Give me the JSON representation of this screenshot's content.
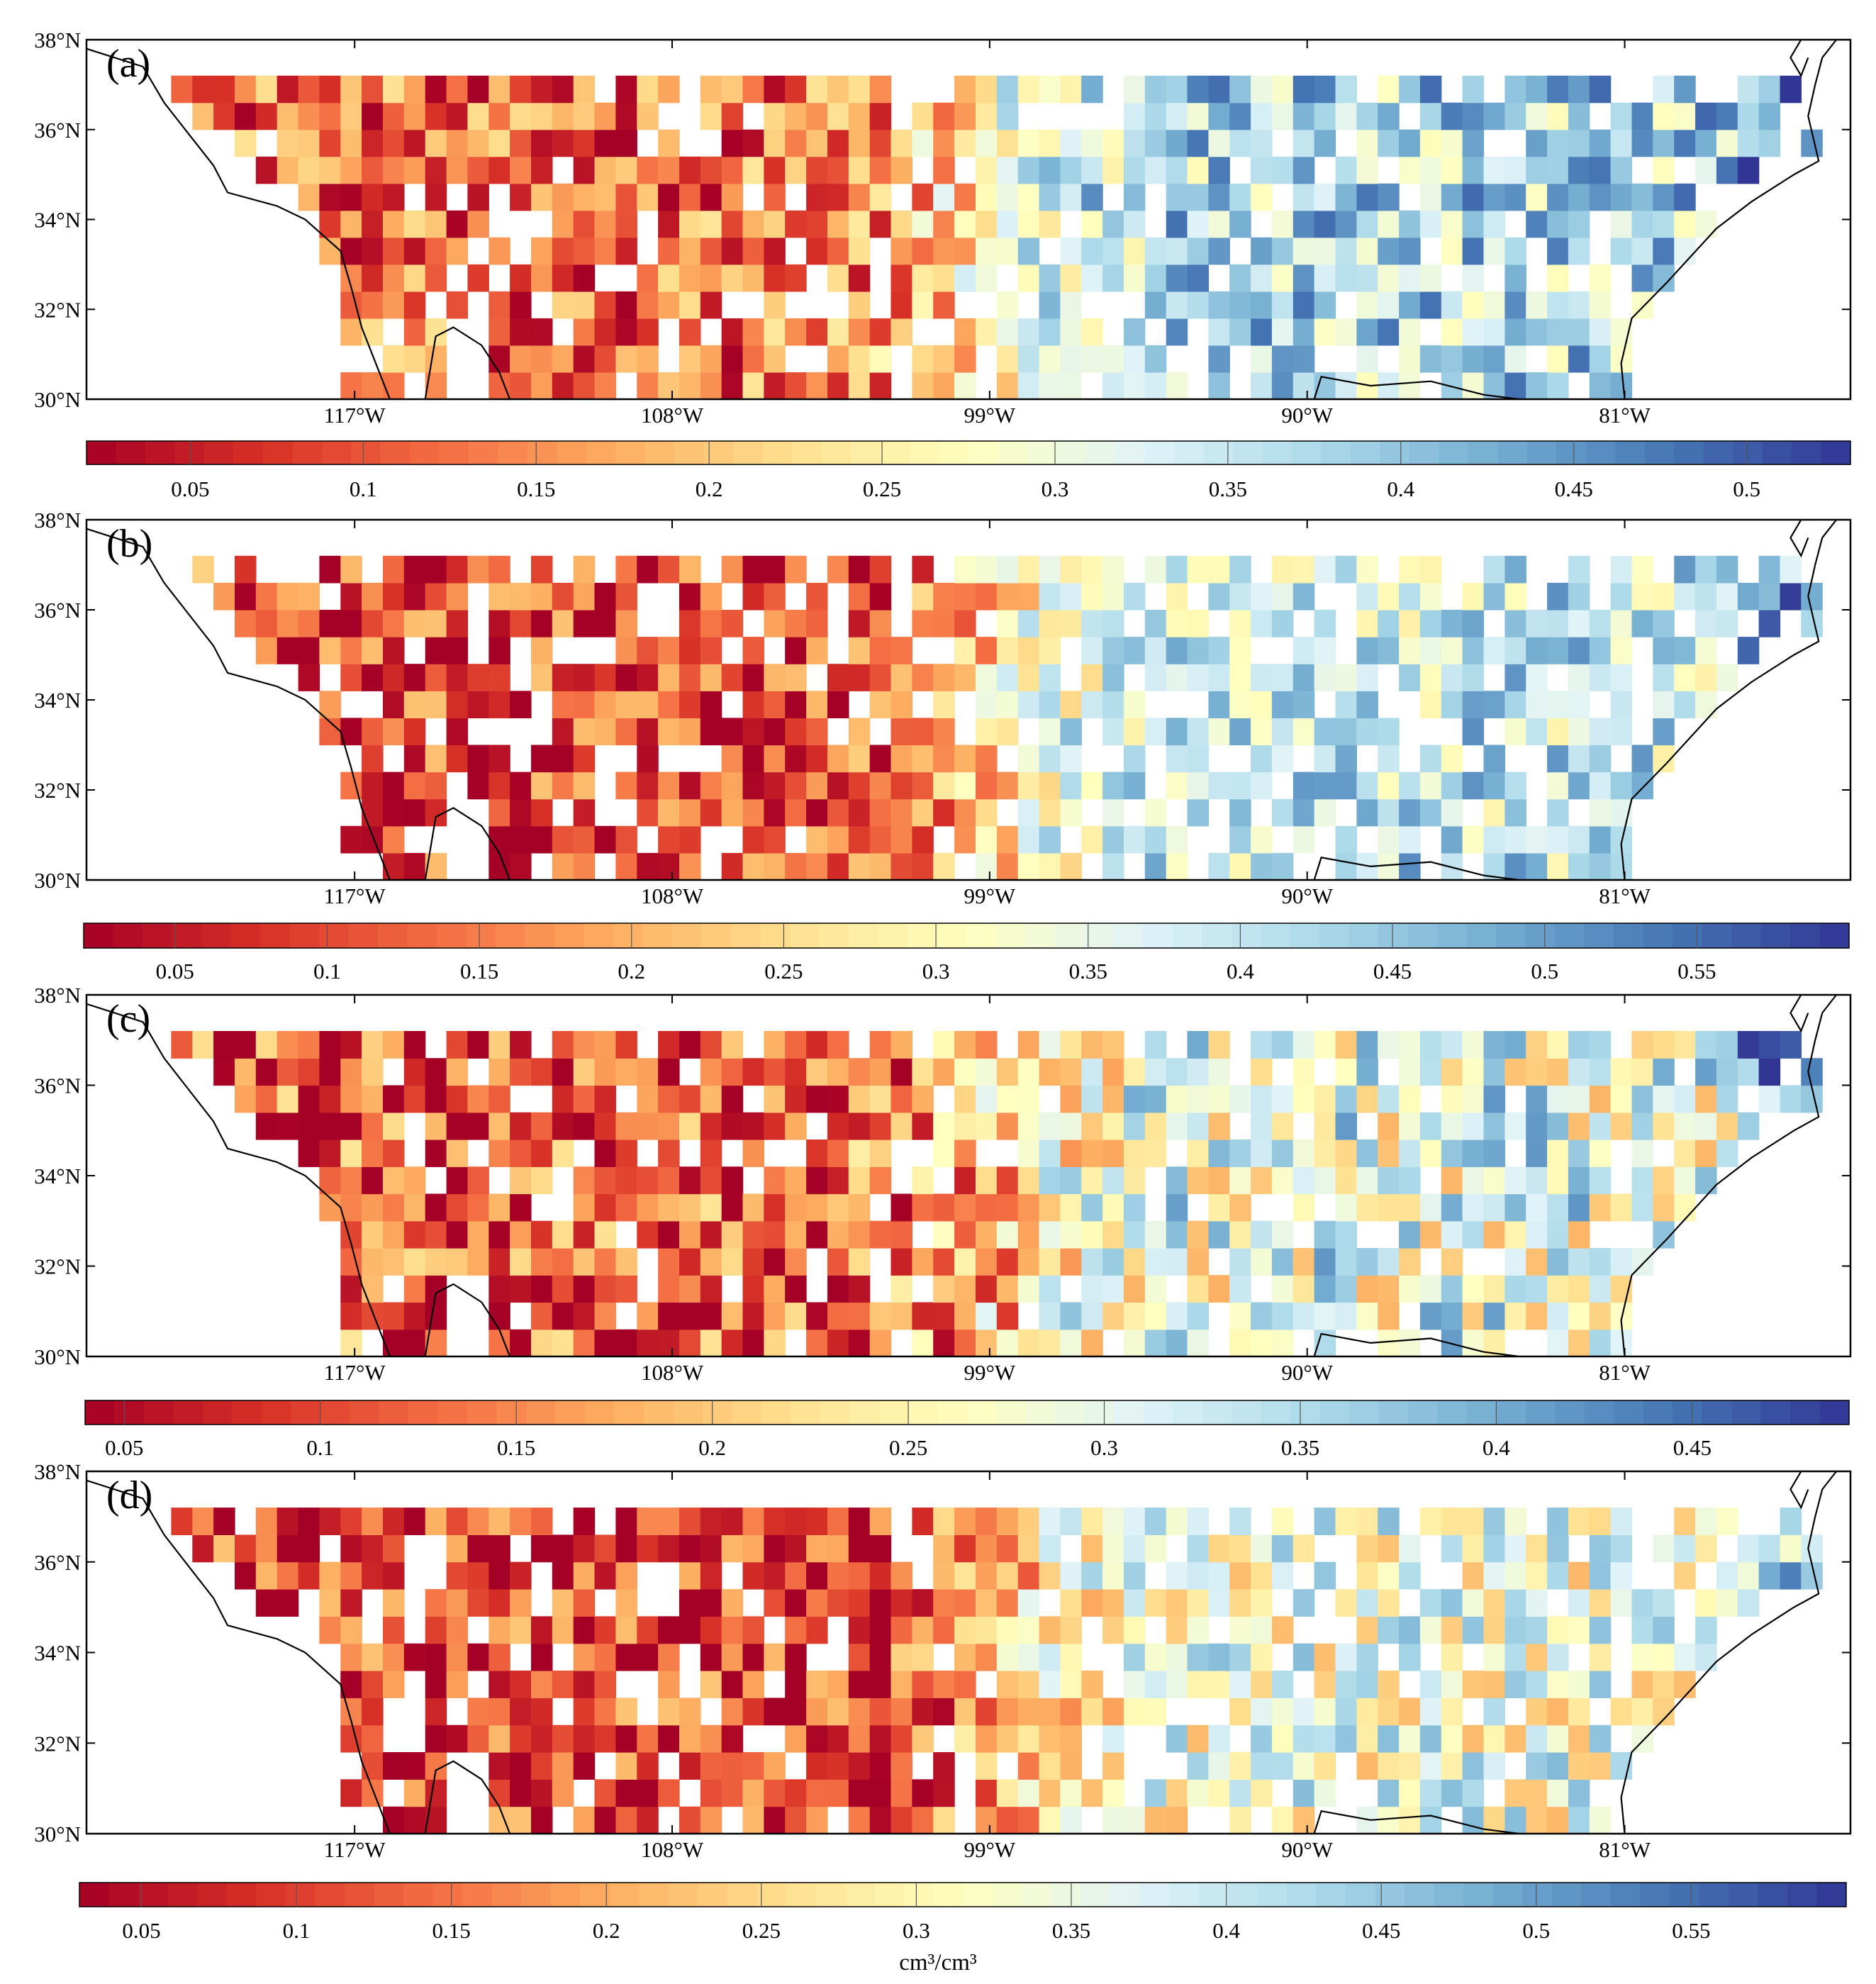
{
  "figure": {
    "unit_label": "cm³/cm³",
    "lat_ticks": [
      "38°N",
      "36°N",
      "34°N",
      "32°N",
      "30°N"
    ],
    "lon_ticks": [
      "117°W",
      "108°W",
      "99°W",
      "90°W",
      "81°W"
    ],
    "colors": {
      "ramp": [
        "#a50026",
        "#d73027",
        "#f46d43",
        "#fdae61",
        "#fee090",
        "#ffffbf",
        "#e0f3f8",
        "#abd9e9",
        "#74add1",
        "#4575b4",
        "#313695"
      ],
      "coastline": "#000000",
      "frame": "#000000",
      "missing": "#ffffff"
    }
  },
  "panels": [
    {
      "label": "(a)",
      "colorbar_ticks": [
        "0.05",
        "0.1",
        "0.15",
        "0.2",
        "0.25",
        "0.3",
        "0.35",
        "0.4",
        "0.45",
        "0.5"
      ],
      "value_range": [
        0.02,
        0.53
      ]
    },
    {
      "label": "(b)",
      "colorbar_ticks": [
        "0.05",
        "0.1",
        "0.15",
        "0.2",
        "0.25",
        "0.3",
        "0.35",
        "0.4",
        "0.45",
        "0.5",
        "0.55"
      ],
      "value_range": [
        0.02,
        0.6
      ]
    },
    {
      "label": "(c)",
      "colorbar_ticks": [
        "0.05",
        "0.1",
        "0.15",
        "0.2",
        "0.25",
        "0.3",
        "0.35",
        "0.4",
        "0.45"
      ],
      "value_range": [
        0.04,
        0.49
      ]
    },
    {
      "label": "(d)",
      "colorbar_ticks": [
        "0.05",
        "0.1",
        "0.15",
        "0.2",
        "0.25",
        "0.3",
        "0.35",
        "0.4",
        "0.45",
        "0.5",
        "0.55"
      ],
      "value_range": [
        0.03,
        0.6
      ]
    }
  ]
}
